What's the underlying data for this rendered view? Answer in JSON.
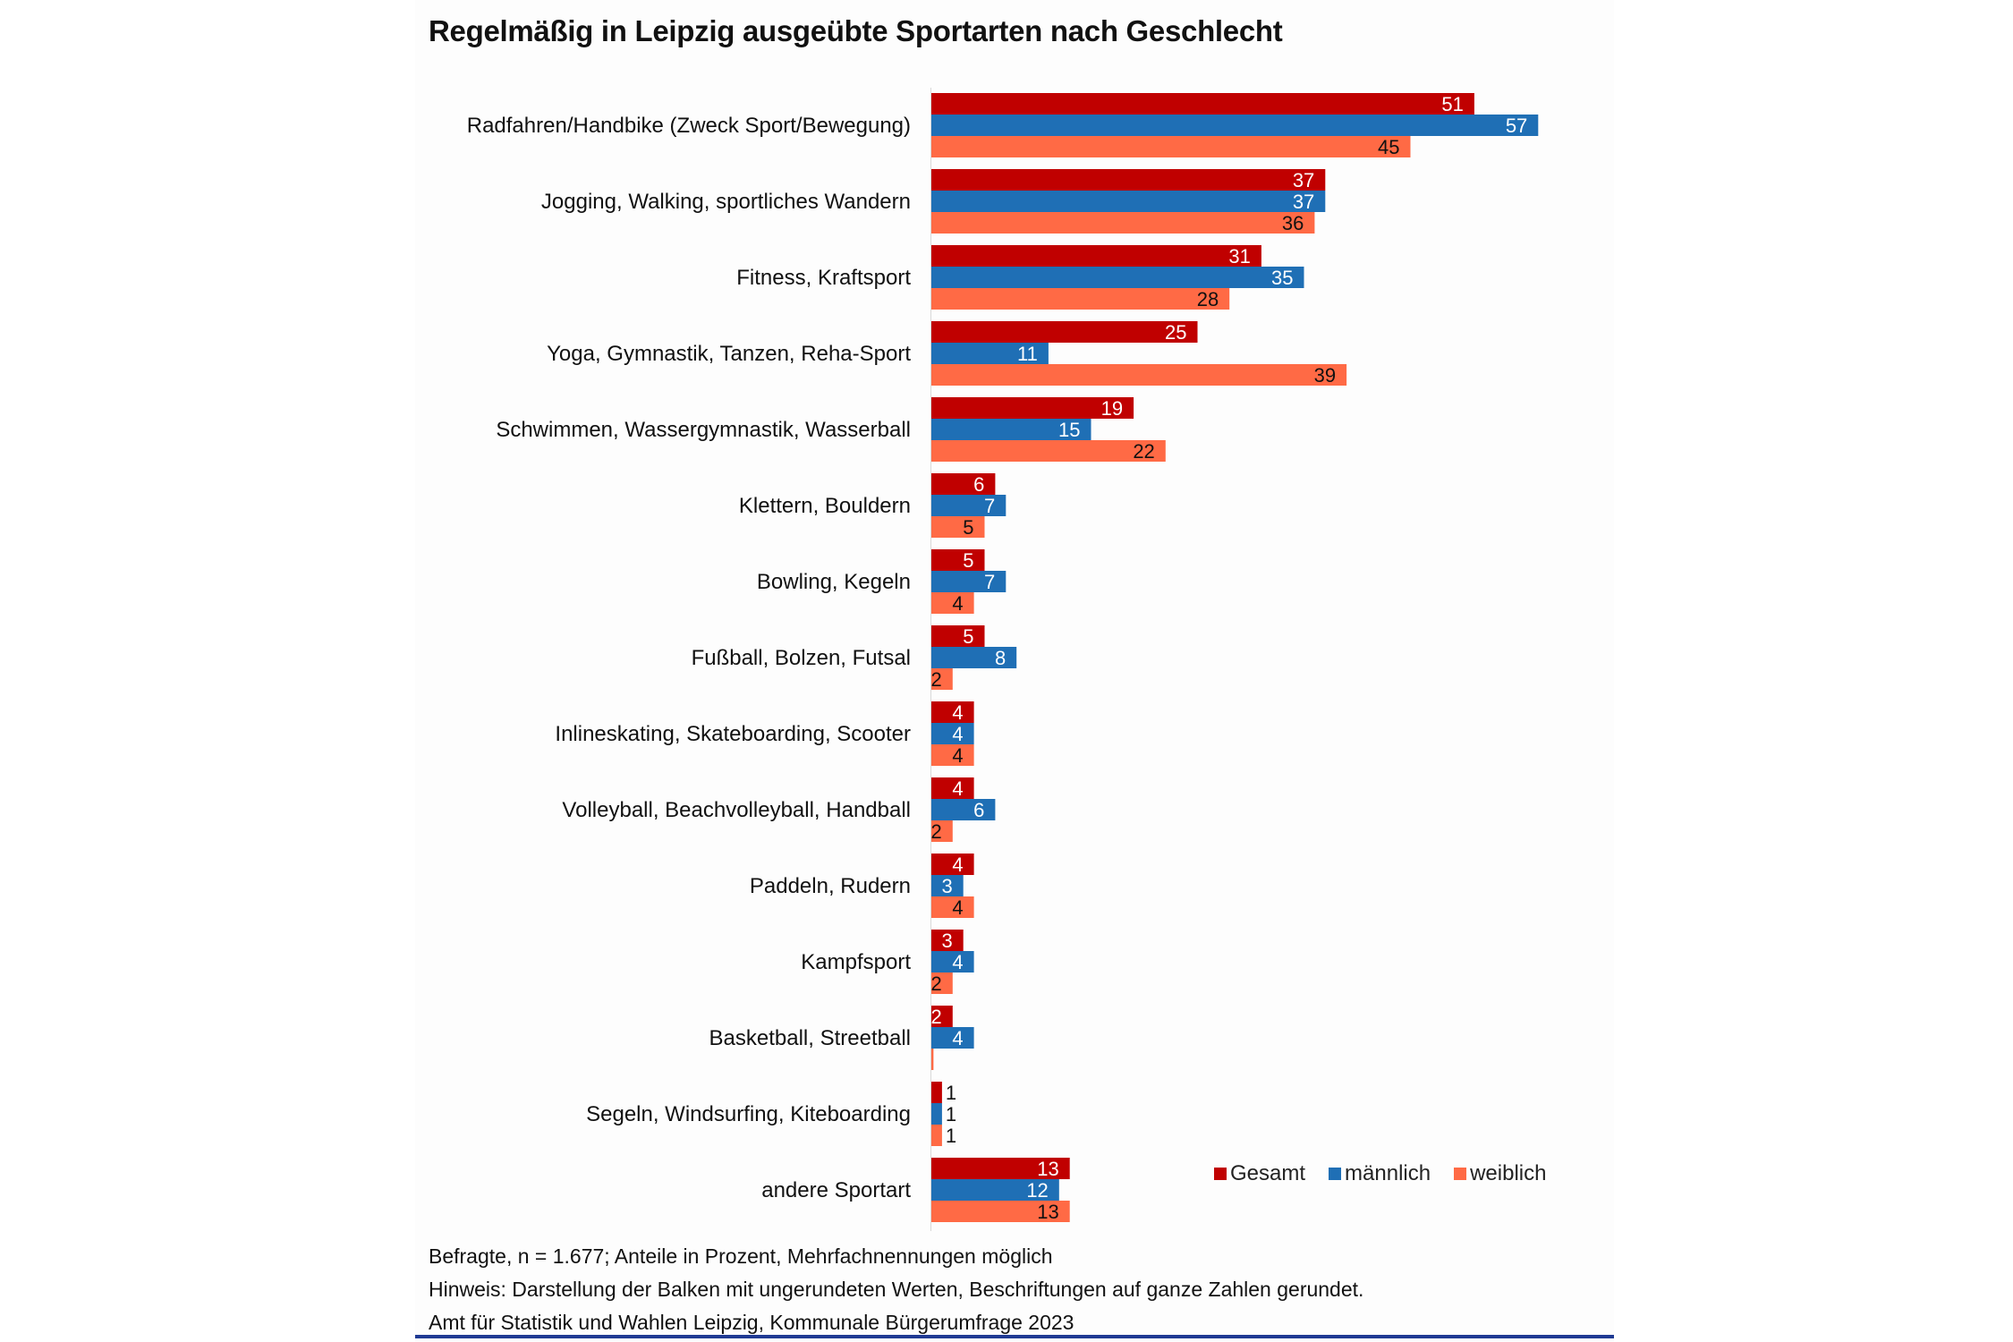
{
  "chart_data": {
    "type": "bar",
    "orientation": "horizontal",
    "title": "Regelmäßig in Leipzig ausgeübte Sportarten nach Geschlecht",
    "xlabel": "",
    "ylabel": "",
    "xlim": [
      0,
      60
    ],
    "grid": false,
    "legend_position": "bottom-right",
    "categories": [
      "Radfahren/Handbike (Zweck Sport/Bewegung)",
      "Jogging, Walking, sportliches Wandern",
      "Fitness, Kraftsport",
      "Yoga, Gymnastik, Tanzen, Reha-Sport",
      "Schwimmen, Wassergymnastik, Wasserball",
      "Klettern, Bouldern",
      "Bowling, Kegeln",
      "Fußball, Bolzen, Futsal",
      "Inlineskating, Skateboarding, Scooter",
      "Volleyball, Beachvolleyball, Handball",
      "Paddeln, Rudern",
      "Kampfsport",
      "Basketball, Streetball",
      "Segeln, Windsurfing, Kiteboarding",
      "andere Sportart"
    ],
    "series": [
      {
        "name": "Gesamt",
        "color": "#c00000",
        "label_color": "#ffffff",
        "values": [
          51,
          37,
          31,
          25,
          19,
          6,
          5,
          5,
          4,
          4,
          4,
          3,
          2,
          1,
          13
        ],
        "labels": [
          "51",
          "37",
          "31",
          "25",
          "19",
          "6",
          "5",
          "5",
          "4",
          "4",
          "4",
          "3",
          "2",
          "1",
          "13"
        ]
      },
      {
        "name": "männlich",
        "color": "#1f6fb5",
        "label_color": "#ffffff",
        "values": [
          57,
          37,
          35,
          11,
          15,
          7,
          7,
          8,
          4,
          6,
          3,
          4,
          4,
          1,
          12
        ],
        "labels": [
          "57",
          "37",
          "35",
          "11",
          "15",
          "7",
          "7",
          "8",
          "4",
          "6",
          "3",
          "4",
          "4",
          "1",
          "12"
        ]
      },
      {
        "name": "weiblich",
        "color": "#ff6a45",
        "label_color": "#111111",
        "values": [
          45,
          36,
          28,
          39,
          22,
          5,
          4,
          2,
          4,
          2,
          4,
          2,
          0.2,
          1,
          13
        ],
        "labels": [
          "45",
          "36",
          "28",
          "39",
          "22",
          "5",
          "4",
          "2",
          "4",
          "2",
          "4",
          "2",
          "",
          "1",
          "13"
        ]
      }
    ]
  },
  "footer": {
    "note1": "Befragte, n = 1.677; Anteile in Prozent, Mehrfachnennungen möglich",
    "note2": "Hinweis: Darstellung der Balken mit ungerundeten Werten, Beschriftungen auf ganze Zahlen gerundet.",
    "source": "Amt für Statistik und Wahlen Leipzig, Kommunale Bürgerumfrage 2023"
  }
}
